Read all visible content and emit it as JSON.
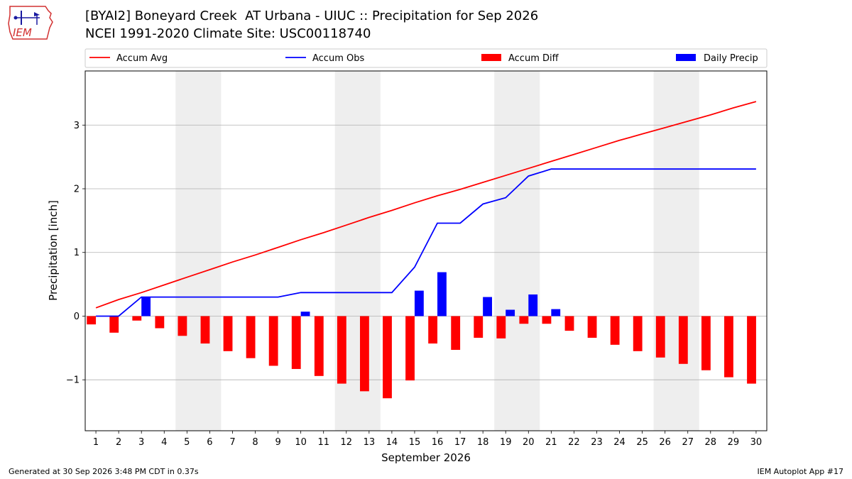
{
  "logo": {
    "text": "IEM"
  },
  "title_line1": "[BYAI2] Boneyard Creek  AT Urbana - UIUC :: Precipitation for Sep 2026",
  "title_line2": "NCEI 1991-2020 Climate Site: USC00118740",
  "footer_left": "Generated at 30 Sep 2026 3:48 PM CDT in 0.37s",
  "footer_right": "IEM Autoplot App #17",
  "chart_data": {
    "type": "bar",
    "xlabel": "September 2026",
    "ylabel": "Precipitation [inch]",
    "ylim": [
      -1.8,
      3.85
    ],
    "yticks": [
      -1,
      0,
      1,
      2,
      3
    ],
    "ytick_labels": [
      "−1",
      "0",
      "1",
      "2",
      "3"
    ],
    "grid": true,
    "legend_placement": "top",
    "weekend_shading": [
      [
        5,
        6
      ],
      [
        12,
        13
      ],
      [
        19,
        20
      ],
      [
        26,
        27
      ]
    ],
    "x": [
      1,
      2,
      3,
      4,
      5,
      6,
      7,
      8,
      9,
      10,
      11,
      12,
      13,
      14,
      15,
      16,
      17,
      18,
      19,
      20,
      21,
      22,
      23,
      24,
      25,
      26,
      27,
      28,
      29,
      30
    ],
    "series": [
      {
        "name": "Accum Avg",
        "kind": "line",
        "color": "#ff0000",
        "values": [
          0.13,
          0.26,
          0.37,
          0.49,
          0.61,
          0.73,
          0.85,
          0.96,
          1.08,
          1.2,
          1.31,
          1.43,
          1.55,
          1.66,
          1.78,
          1.89,
          1.99,
          2.1,
          2.21,
          2.32,
          2.43,
          2.54,
          2.65,
          2.76,
          2.86,
          2.96,
          3.06,
          3.16,
          3.27,
          3.37
        ]
      },
      {
        "name": "Accum Obs",
        "kind": "line",
        "color": "#0000ff",
        "values": [
          0.0,
          0.0,
          0.3,
          0.3,
          0.3,
          0.3,
          0.3,
          0.3,
          0.3,
          0.37,
          0.37,
          0.37,
          0.37,
          0.37,
          0.77,
          1.46,
          1.46,
          1.76,
          1.86,
          2.2,
          2.31,
          2.31,
          2.31,
          2.31,
          2.31,
          2.31,
          2.31,
          2.31,
          2.31,
          2.31
        ]
      },
      {
        "name": "Accum Diff",
        "kind": "bar",
        "color": "#ff0000",
        "values": [
          -0.13,
          -0.26,
          -0.07,
          -0.19,
          -0.31,
          -0.43,
          -0.55,
          -0.66,
          -0.78,
          -0.83,
          -0.94,
          -1.06,
          -1.18,
          -1.29,
          -1.01,
          -0.43,
          -0.53,
          -0.34,
          -0.35,
          -0.12,
          -0.12,
          -0.23,
          -0.34,
          -0.45,
          -0.55,
          -0.65,
          -0.75,
          -0.85,
          -0.96,
          -1.06
        ]
      },
      {
        "name": "Daily Precip",
        "kind": "bar",
        "color": "#0000ff",
        "values": [
          0,
          0,
          0.3,
          0,
          0,
          0,
          0,
          0,
          0,
          0.07,
          0,
          0,
          0,
          0,
          0.4,
          0.69,
          0,
          0.3,
          0.1,
          0.34,
          0.11,
          0,
          0,
          0,
          0,
          0,
          0,
          0,
          0,
          0
        ]
      }
    ]
  }
}
